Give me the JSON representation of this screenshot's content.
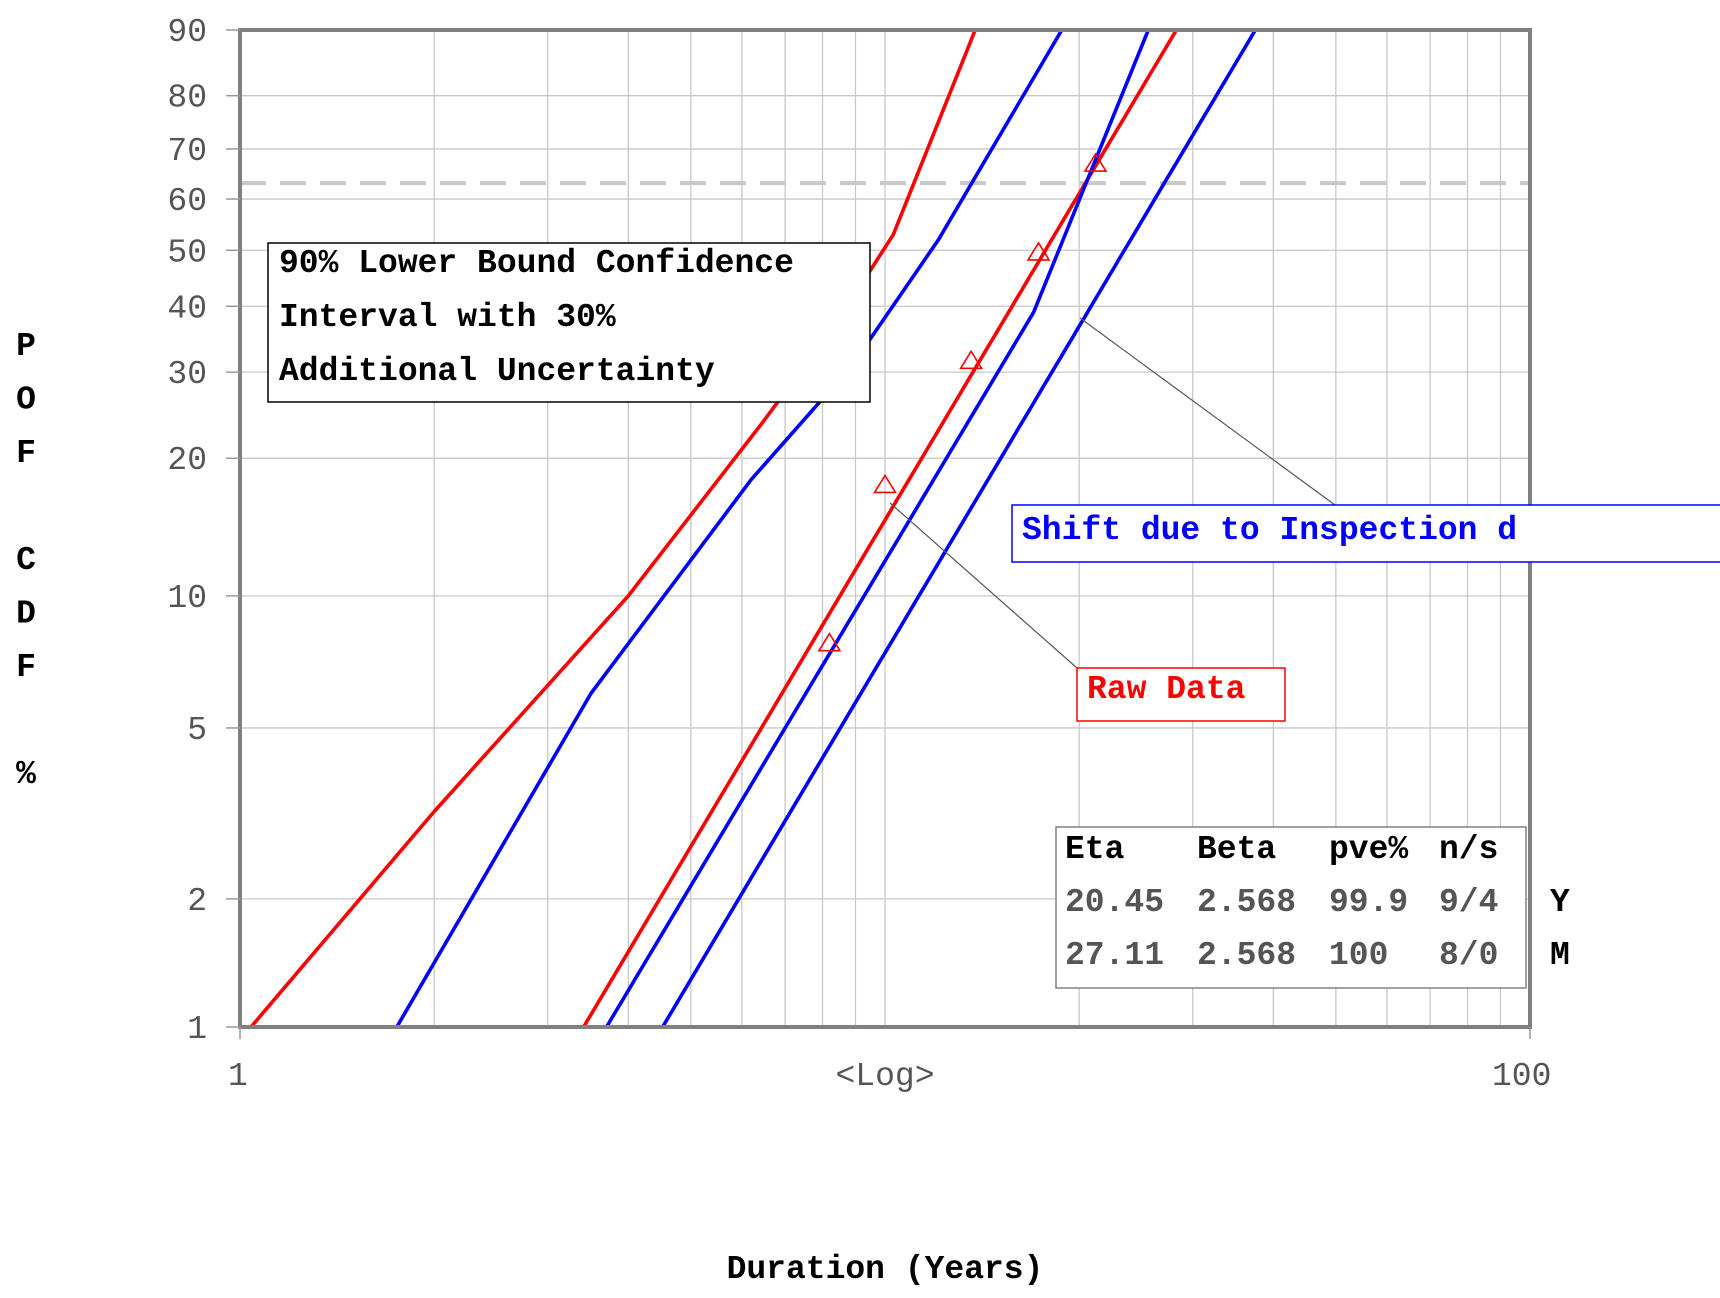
{
  "chart_data": {
    "type": "line",
    "xlabel": "Duration (Years)",
    "xscale_label": "<Log>",
    "ylabel_letters": [
      "P",
      "O",
      "F",
      "",
      "C",
      "D",
      "F",
      "",
      "%"
    ],
    "x_scale": "log",
    "y_scale": "weibull",
    "xlim": [
      1,
      100
    ],
    "ylim": [
      1,
      90
    ],
    "x_tick_labels": [
      {
        "value": 1,
        "label": "1"
      },
      {
        "value": 100,
        "label": "100"
      }
    ],
    "x_grid": [
      2,
      3,
      4,
      5,
      6,
      7,
      8,
      9,
      10,
      20,
      30,
      40,
      50,
      60,
      70,
      80,
      90
    ],
    "y_ticks": [
      1,
      2,
      5,
      10,
      20,
      30,
      40,
      50,
      60,
      70,
      80,
      90
    ],
    "grid": true,
    "reference_line": {
      "y": 63.2,
      "style": "dashed",
      "color": "#c8c8c8"
    },
    "series": [
      {
        "color": "#ff0000",
        "style": "line",
        "eta": 20.45,
        "beta": 2.568
      },
      {
        "color": "#0000ff",
        "style": "line",
        "eta": 27.11,
        "beta": 2.568
      },
      {
        "color": "#ff0000",
        "style": "line",
        "points": [
          [
            1.04,
            1
          ],
          [
            2,
            3.2
          ],
          [
            4,
            10
          ],
          [
            6.5,
            24
          ],
          [
            8.5,
            38
          ],
          [
            10.3,
            53
          ],
          [
            13.8,
            90
          ]
        ]
      },
      {
        "color": "#0000ff",
        "style": "line",
        "points": [
          [
            1.75,
            1
          ],
          [
            3.5,
            6
          ],
          [
            6.2,
            18
          ],
          [
            8.9,
            31
          ],
          [
            12.1,
            52
          ],
          [
            18.8,
            90
          ]
        ]
      },
      {
        "color": "#0000ff",
        "style": "line",
        "points": [
          [
            3.7,
            1
          ],
          [
            7,
            5
          ],
          [
            11,
            15
          ],
          [
            17,
            39
          ],
          [
            25.6,
            90
          ]
        ]
      },
      {
        "color": "#ff0000",
        "style": "points",
        "marker": "triangle",
        "points": [
          [
            8.2,
            7.8
          ],
          [
            10.0,
            17.5
          ],
          [
            13.6,
            31.5
          ],
          [
            17.3,
            49.5
          ],
          [
            21.2,
            67
          ]
        ]
      }
    ],
    "annotations": {
      "confidence_box": {
        "lines": [
          "90% Lower Bound Confidence",
          "Interval with 30%",
          "Additional Uncertainty"
        ]
      },
      "shift_label": "Shift due to Inspection d",
      "raw_label": "Raw Data"
    },
    "legend": {
      "placement": "bottom-right",
      "headers": [
        "Eta",
        "Beta",
        "pve%",
        "n/s"
      ],
      "rows": [
        {
          "color": "#ff0000",
          "values": [
            "20.45",
            "2.568",
            "99.9",
            "9/4"
          ],
          "tag": "Y"
        },
        {
          "color": "#0000ff",
          "values": [
            "27.11",
            "2.568",
            "100",
            "8/0"
          ],
          "tag": "M"
        }
      ]
    }
  }
}
